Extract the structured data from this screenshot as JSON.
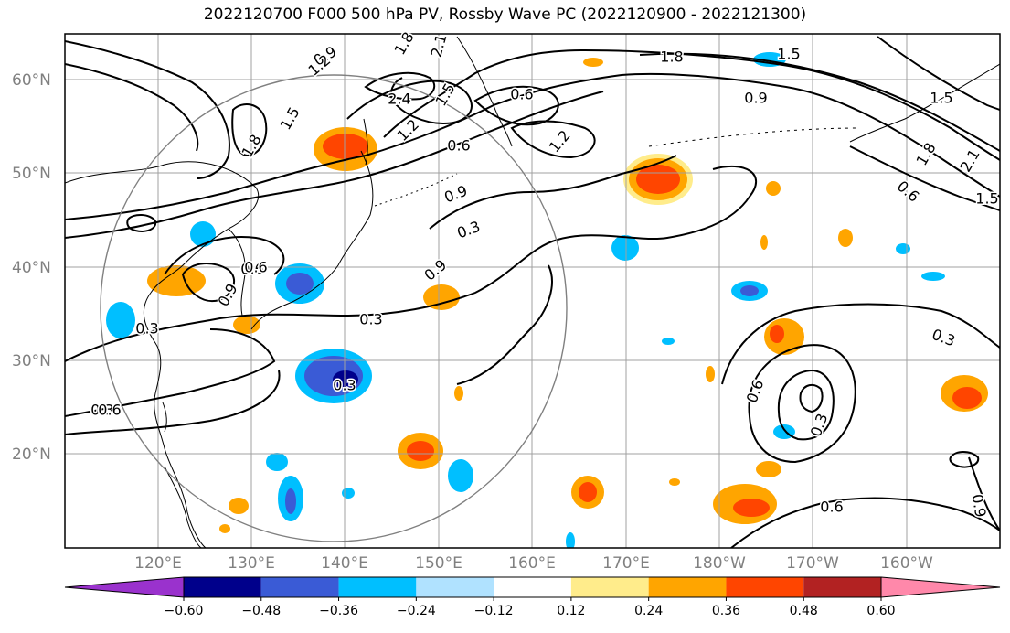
{
  "title": "2022120700 F000 500 hPa PV, Rossby Wave PC (2022120900 - 2022121300)",
  "lon_labels": [
    "120°E",
    "130°E",
    "140°E",
    "150°E",
    "160°E",
    "170°E",
    "180°W",
    "170°W",
    "160°W"
  ],
  "lat_labels": [
    "60°N",
    "50°N",
    "40°N",
    "30°N",
    "20°N"
  ],
  "contour_labels": [
    "0.9",
    "1.8",
    "2.1",
    "1.2",
    "1.5",
    "2.4",
    "1.5",
    "1.8",
    "0.6",
    "0.9",
    "1.8",
    "0.6",
    "1.2",
    "1.2",
    "1.5",
    "1.5",
    "2.1",
    "1.8",
    "0.6",
    "1.5",
    "0.9",
    "0.3",
    "0.6",
    "0.9",
    "0.3",
    "0.9",
    "0.3",
    "0.6",
    "0.3",
    "0.6",
    "0.9",
    "0.3",
    "0.3",
    "0.3",
    "0.6",
    "0.6"
  ],
  "colorbar": {
    "levels": [
      "−0.60",
      "−0.48",
      "−0.36",
      "−0.24",
      "−0.12",
      "0.12",
      "0.24",
      "0.36",
      "0.48",
      "0.60"
    ],
    "colors": [
      "#9a32cd",
      "#00008b",
      "#3a5bd6",
      "#00bfff",
      "#b0e2ff",
      "#ffffff",
      "#ffec8b",
      "#ffa500",
      "#ff4500",
      "#b22222",
      "#ff88aa"
    ]
  },
  "shading_colors": {
    "neg_light": "#b0e2ff",
    "neg_mid": "#00bfff",
    "neg_dark": "#3a5bd6",
    "neg_darker": "#00008b",
    "neg_max": "#9a32cd",
    "pos_light": "#ffec8b",
    "pos_mid": "#ffa500",
    "pos_dark": "#ff4500",
    "pos_darker": "#b22222"
  },
  "grid_color": "#a0a0a0",
  "circle_color": "#808080"
}
